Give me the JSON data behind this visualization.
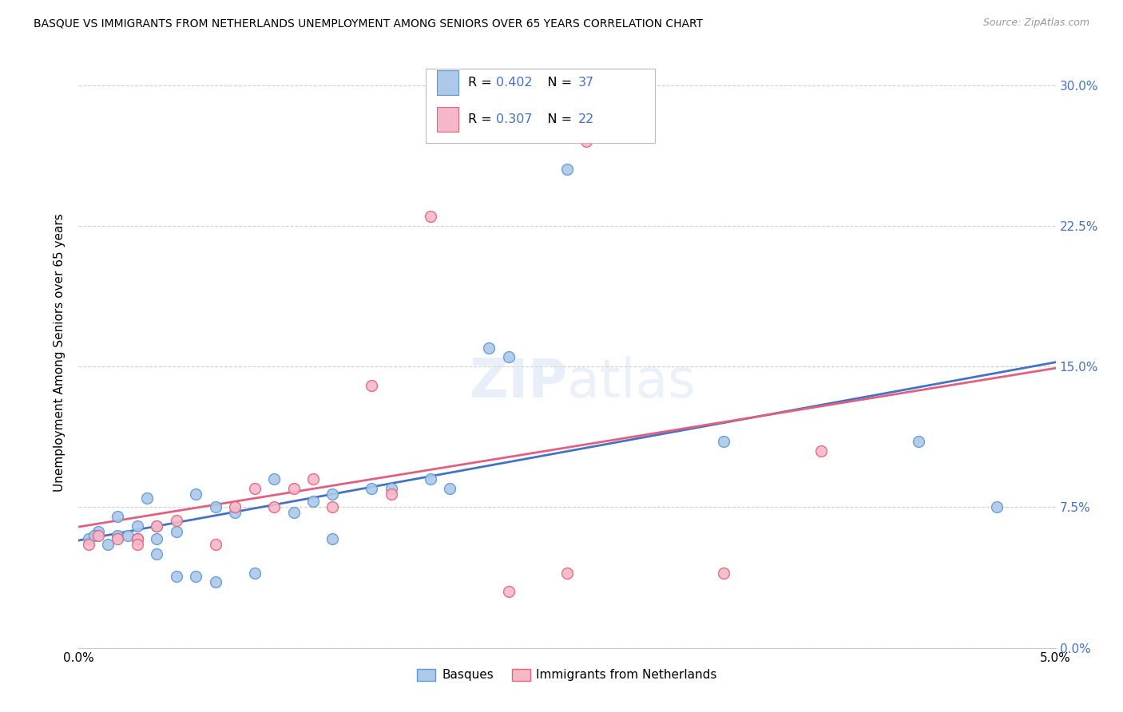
{
  "title": "BASQUE VS IMMIGRANTS FROM NETHERLANDS UNEMPLOYMENT AMONG SENIORS OVER 65 YEARS CORRELATION CHART",
  "source": "Source: ZipAtlas.com",
  "ylabel": "Unemployment Among Seniors over 65 years",
  "ylabel_ticks_right": [
    "0.0%",
    "7.5%",
    "15.0%",
    "22.5%",
    "30.0%"
  ],
  "xmin": 0.0,
  "xmax": 0.05,
  "ymin": 0.0,
  "ymax": 0.315,
  "yticks": [
    0.0,
    0.075,
    0.15,
    0.225,
    0.3
  ],
  "r_basque": 0.402,
  "n_basque": 37,
  "r_netherlands": 0.307,
  "n_netherlands": 22,
  "color_basque_fill": "#adc8e8",
  "color_basque_edge": "#5b9bd5",
  "color_netherlands_fill": "#f5b8c8",
  "color_netherlands_edge": "#e8607a",
  "color_basque_line": "#4472c4",
  "color_netherlands_line": "#e06080",
  "color_r_value": "#4472c4",
  "color_grid": "#cccccc",
  "legend_label_basque": "Basques",
  "legend_label_netherlands": "Immigrants from Netherlands",
  "watermark": "ZIPatlas",
  "basque_x": [
    0.0005,
    0.001,
    0.0015,
    0.002,
    0.002,
    0.0025,
    0.003,
    0.003,
    0.003,
    0.0035,
    0.004,
    0.004,
    0.004,
    0.005,
    0.005,
    0.006,
    0.006,
    0.007,
    0.007,
    0.008,
    0.009,
    0.01,
    0.011,
    0.012,
    0.013,
    0.013,
    0.015,
    0.016,
    0.018,
    0.019,
    0.021,
    0.022,
    0.025,
    0.033,
    0.043,
    0.047,
    0.0008
  ],
  "basque_y": [
    0.058,
    0.062,
    0.055,
    0.06,
    0.07,
    0.06,
    0.058,
    0.065,
    0.058,
    0.08,
    0.05,
    0.058,
    0.065,
    0.062,
    0.038,
    0.038,
    0.082,
    0.075,
    0.035,
    0.072,
    0.04,
    0.09,
    0.072,
    0.078,
    0.082,
    0.058,
    0.085,
    0.085,
    0.09,
    0.085,
    0.16,
    0.155,
    0.255,
    0.11,
    0.11,
    0.075,
    0.06
  ],
  "netherlands_x": [
    0.0005,
    0.001,
    0.002,
    0.003,
    0.003,
    0.004,
    0.005,
    0.007,
    0.008,
    0.009,
    0.01,
    0.011,
    0.012,
    0.013,
    0.015,
    0.016,
    0.018,
    0.022,
    0.025,
    0.026,
    0.033,
    0.038
  ],
  "netherlands_y": [
    0.055,
    0.06,
    0.058,
    0.058,
    0.055,
    0.065,
    0.068,
    0.055,
    0.075,
    0.085,
    0.075,
    0.085,
    0.09,
    0.075,
    0.14,
    0.082,
    0.23,
    0.03,
    0.04,
    0.27,
    0.04,
    0.105
  ]
}
